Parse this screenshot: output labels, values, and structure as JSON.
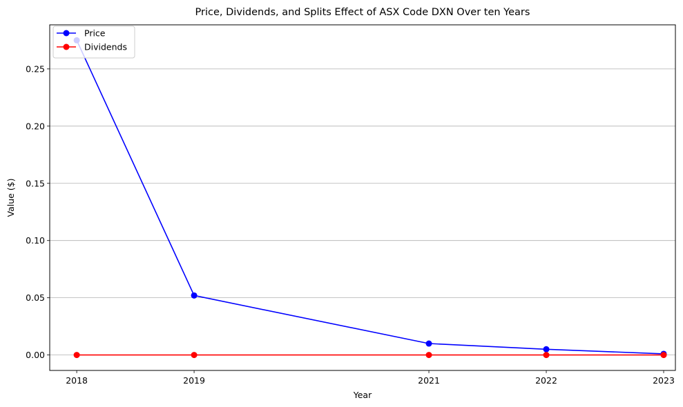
{
  "chart_data": {
    "type": "line",
    "title": "Price, Dividends, and Splits Effect of ASX Code DXN Over ten Years",
    "xlabel": "Year",
    "ylabel": "Value ($)",
    "x": [
      2018,
      2019,
      2021,
      2022,
      2023
    ],
    "x_ticks": [
      "2018",
      "2019",
      "2021",
      "2022",
      "2023"
    ],
    "xlim": [
      2017.77,
      2023.1
    ],
    "ylim": [
      -0.0135,
      0.2885
    ],
    "y_ticks": [
      "0.00",
      "0.05",
      "0.10",
      "0.15",
      "0.20",
      "0.25"
    ],
    "y_tick_values": [
      0,
      0.05,
      0.1,
      0.15,
      0.2,
      0.25
    ],
    "grid": "y-only",
    "legend_position": "top-left",
    "series": [
      {
        "name": "Price",
        "color": "#0000ff",
        "values": [
          0.275,
          0.052,
          0.01,
          0.005,
          0.001
        ]
      },
      {
        "name": "Dividends",
        "color": "#ff0000",
        "values": [
          0.0,
          0.0,
          0.0,
          0.0,
          0.0
        ]
      }
    ]
  }
}
